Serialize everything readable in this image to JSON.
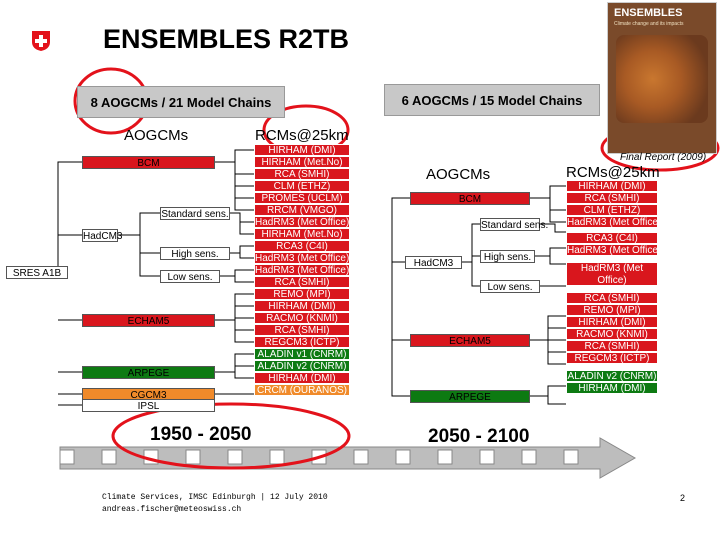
{
  "title": "ENSEMBLES R2TB",
  "report": {
    "cover_title": "ENSEMBLES",
    "cover_subtitle": "Climate change and its impacts",
    "caption": "Final Report (2009)"
  },
  "left": {
    "header": "8 AOGCMs / 21 Model Chains",
    "col_aogcm": "AOGCMs",
    "col_rcm": "RCMs@25km",
    "scenario": "SRES A1B",
    "nodes": {
      "bcm": "BCM",
      "hadcm3": "HadCM3",
      "standard": "Standard sens.",
      "high": "High sens.",
      "low": "Low sens.",
      "echam5": "ECHAM5",
      "arpege": "ARPEGE",
      "cgcm3": "CGCM3",
      "ipsl": "IPSL"
    },
    "rcms": [
      "HIRHAM (DMI)",
      "HIRHAM (Met.No)",
      "RCA (SMHI)",
      "CLM (ETHZ)",
      "PROMES (UCLM)",
      "RRCM (VMGO)",
      "HadRM3 (Met Office)",
      "HIRHAM (Met.No)",
      "RCA3 (C4I)",
      "HadRM3 (Met Office)",
      "HadRM3 (Met Office)",
      "RCA (SMHI)",
      "REMO (MPI)",
      "HIRHAM (DMI)",
      "RACMO (KNMI)",
      "RCA (SMHI)",
      "REGCM3 (ICTP)",
      "ALADIN v1 (CNRM)",
      "ALADIN v2 (CNRM)",
      "HIRHAM (DMI)",
      "CRCM (OURANOS)"
    ],
    "period": "1950 - 2050"
  },
  "right": {
    "header": "6 AOGCMs / 15 Model Chains",
    "col_aogcm": "AOGCMs",
    "col_rcm": "RCMs@25km",
    "nodes": {
      "bcm": "BCM",
      "hadcm3": "HadCM3",
      "standard": "Standard sens.",
      "high": "High sens.",
      "low": "Low sens.",
      "echam5": "ECHAM5",
      "arpege": "ARPEGE"
    },
    "rcms": [
      "HIRHAM (DMI)",
      "RCA (SMHI)",
      "CLM (ETHZ)",
      "HadRM3 (Met Office)",
      "RCA3 (C4I)",
      "HadRM3 (Met Office)",
      "HadRM3 (Met Office)",
      "RCA (SMHI)",
      "REMO (MPI)",
      "HIRHAM (DMI)",
      "RACMO (KNMI)",
      "RCA (SMHI)",
      "REGCM3 (ICTP)",
      "ALADIN v2 (CNRM)",
      "HIRHAM (DMI)"
    ],
    "period": "2050 - 2100"
  },
  "footer": {
    "line1": "Climate Services, IMSC Edinburgh | 12 July 2010",
    "line2": "andreas.fischer@meteoswiss.ch",
    "page": "2"
  },
  "colors": {
    "red_box": "#d9161d",
    "green_box": "#0d7a12",
    "highlight_circle": "#e3121b",
    "swiss_red": "#e3121b"
  }
}
